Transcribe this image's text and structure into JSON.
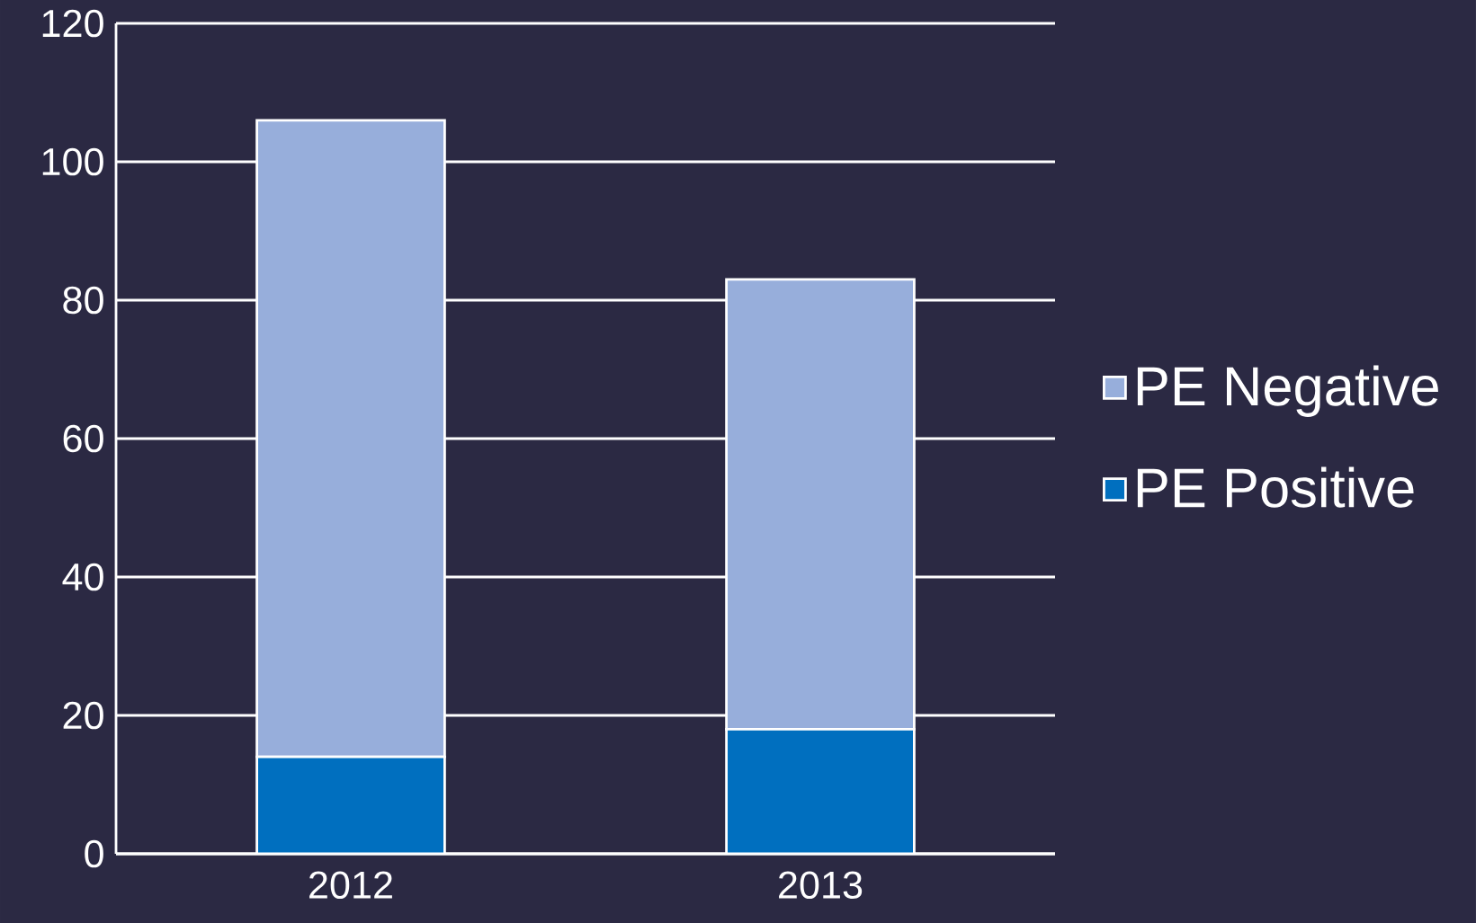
{
  "chart_data": {
    "type": "bar",
    "stacked": true,
    "categories": [
      "2012",
      "2013"
    ],
    "series": [
      {
        "name": "PE Positive",
        "color": "#006fbf",
        "values": [
          14,
          18
        ]
      },
      {
        "name": "PE Negative",
        "color": "#97aedb",
        "values": [
          92,
          65
        ]
      }
    ],
    "ylim": [
      0,
      120
    ],
    "yticks": [
      0,
      20,
      40,
      60,
      80,
      100,
      120
    ],
    "grid": "y",
    "legend": "right"
  }
}
